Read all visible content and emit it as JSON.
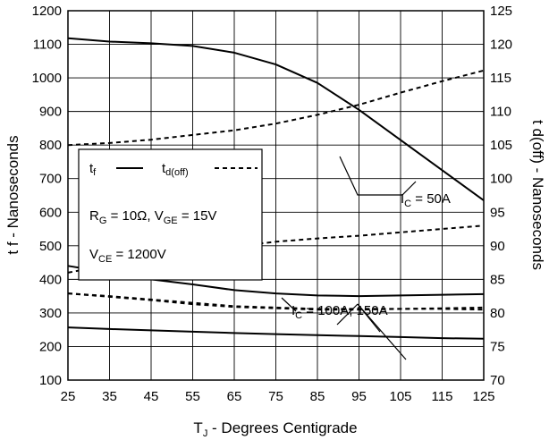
{
  "chart_data": {
    "type": "line",
    "title": "",
    "xlabel": {
      "main": "T",
      "sub": "J",
      "rest": " - Degrees Centigrade"
    },
    "ylabel_left": "t f - Nanoseconds",
    "ylabel_right": "t d(off) - Nanoseconds",
    "x_ticks": [
      25,
      35,
      45,
      55,
      65,
      75,
      85,
      95,
      105,
      115,
      125
    ],
    "y_left_ticks": [
      100,
      200,
      300,
      400,
      500,
      600,
      700,
      800,
      900,
      1000,
      1100,
      1200
    ],
    "y_right_ticks": [
      70,
      75,
      80,
      85,
      90,
      95,
      100,
      105,
      110,
      115,
      120,
      125
    ],
    "xlim": [
      25,
      125
    ],
    "ylim_left": [
      100,
      1200
    ],
    "ylim_right": [
      70,
      125
    ],
    "grid": true,
    "series": [
      {
        "axis": "left",
        "style": "solid",
        "x": [
          25,
          35,
          45,
          55,
          65,
          75,
          85,
          95,
          105,
          115,
          125
        ],
        "y": [
          1118,
          1108,
          1103,
          1095,
          1075,
          1040,
          985,
          905,
          815,
          725,
          635
        ]
      },
      {
        "axis": "right",
        "style": "dashed",
        "x": [
          25,
          35,
          45,
          55,
          65,
          75,
          85,
          95,
          105,
          115,
          125
        ],
        "y": [
          105.0,
          105.3,
          105.8,
          106.5,
          107.2,
          108.2,
          109.5,
          111.0,
          112.8,
          114.5,
          116.1
        ]
      },
      {
        "axis": "left",
        "style": "solid",
        "x": [
          25,
          35,
          45,
          55,
          65,
          75,
          85,
          95,
          105,
          115,
          125
        ],
        "y": [
          440,
          420,
          400,
          385,
          368,
          358,
          352,
          350,
          352,
          354,
          356
        ]
      },
      {
        "axis": "right",
        "style": "dashed",
        "x": [
          25,
          35,
          45,
          55,
          65,
          75,
          85,
          95,
          105,
          115,
          125
        ],
        "y": [
          86.0,
          87.2,
          88.3,
          89.2,
          89.9,
          90.6,
          91.1,
          91.5,
          92.0,
          92.5,
          93.0
        ]
      },
      {
        "axis": "left",
        "style": "solid",
        "x": [
          25,
          35,
          45,
          55,
          65,
          75,
          85,
          95,
          105,
          115,
          125
        ],
        "y": [
          257,
          252,
          248,
          244,
          240,
          237,
          234,
          231,
          228,
          225,
          223
        ]
      },
      {
        "axis": "right",
        "style": "dashed",
        "x": [
          25,
          35,
          45,
          55,
          65,
          75,
          85,
          95,
          105,
          115,
          125
        ],
        "y": [
          82.9,
          82.4,
          81.9,
          81.3,
          80.9,
          80.7,
          80.5,
          80.5,
          80.6,
          80.7,
          80.8
        ]
      },
      {
        "axis": "right",
        "style": "dashed",
        "x": [
          25,
          35,
          45,
          55,
          65,
          75,
          85,
          95,
          105,
          115,
          125
        ],
        "y": [
          82.9,
          82.5,
          82.0,
          81.5,
          81.0,
          80.8,
          80.6,
          80.6,
          80.6,
          80.6,
          80.5
        ]
      }
    ],
    "annotations": {
      "ic50": {
        "main": "I",
        "sub": "C",
        "rest": " = 50A"
      },
      "ic100": {
        "main": "I",
        "sub": "C",
        "rest": " = 100A, 150A"
      }
    },
    "legend": {
      "location": "center-left",
      "tf_main": "t",
      "tf_sub": "f",
      "td_main": "t",
      "td_sub": "d(off)",
      "cond1": {
        "r": "R",
        "r_sub": "G",
        "r_val": " = 10Ω,  ",
        "v": "V",
        "v_sub": "GE",
        "v_val": " = 15V"
      },
      "cond2": {
        "v": "V",
        "v_sub": "CE",
        "v_val": " = 1200V"
      }
    }
  }
}
